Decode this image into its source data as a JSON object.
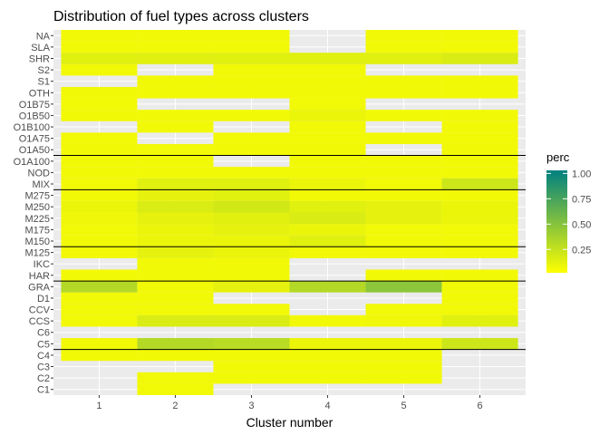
{
  "chart_data": {
    "type": "heatmap",
    "title": "Distribution of fuel types across clusters",
    "xlabel": "Cluster number",
    "ylabel": "",
    "x_categories": [
      "1",
      "2",
      "3",
      "4",
      "5",
      "6"
    ],
    "y_categories": [
      "C1",
      "C2",
      "C3",
      "C4",
      "C5",
      "C6",
      "CCS",
      "CCV",
      "D1",
      "GRA",
      "HAR",
      "IKC",
      "M125",
      "M150",
      "M175",
      "M225",
      "M250",
      "M275",
      "MIX",
      "NOD",
      "O1A100",
      "O1A50",
      "O1A75",
      "O1B100",
      "O1B50",
      "O1B75",
      "OTH",
      "S1",
      "S2",
      "SHR",
      "SLA",
      "NA"
    ],
    "rows": [
      {
        "y": "C1",
        "values": [
          null,
          0.05,
          null,
          null,
          null,
          null
        ]
      },
      {
        "y": "C2",
        "values": [
          null,
          0.05,
          0.05,
          0.05,
          0.05,
          null
        ]
      },
      {
        "y": "C3",
        "values": [
          null,
          null,
          0.05,
          0.05,
          0.05,
          null
        ]
      },
      {
        "y": "C4",
        "values": [
          0.05,
          0.05,
          0.05,
          0.05,
          0.05,
          null
        ]
      },
      {
        "y": "C5",
        "values": [
          0.05,
          0.3,
          0.28,
          0.08,
          0.08,
          0.2
        ]
      },
      {
        "y": "C6",
        "values": [
          null,
          null,
          null,
          null,
          null,
          null
        ]
      },
      {
        "y": "CCS",
        "values": [
          0.05,
          0.15,
          0.15,
          0.05,
          0.06,
          0.12
        ]
      },
      {
        "y": "CCV",
        "values": [
          0.05,
          0.05,
          0.05,
          null,
          0.05,
          0.05
        ]
      },
      {
        "y": "D1",
        "values": [
          0.05,
          0.05,
          null,
          null,
          null,
          0.05
        ]
      },
      {
        "y": "GRA",
        "values": [
          0.3,
          0.05,
          0.1,
          0.3,
          0.45,
          0.05
        ]
      },
      {
        "y": "HAR",
        "values": [
          0.05,
          0.05,
          0.05,
          null,
          0.05,
          0.05
        ]
      },
      {
        "y": "IKC",
        "values": [
          null,
          0.05,
          0.05,
          null,
          null,
          null
        ]
      },
      {
        "y": "M125",
        "values": [
          0.05,
          0.1,
          0.08,
          0.05,
          0.05,
          0.05
        ]
      },
      {
        "y": "M150",
        "values": [
          0.05,
          0.08,
          0.08,
          0.12,
          0.05,
          0.05
        ]
      },
      {
        "y": "M175",
        "values": [
          0.05,
          0.08,
          0.1,
          0.08,
          0.05,
          0.05
        ]
      },
      {
        "y": "M225",
        "values": [
          0.06,
          0.1,
          0.12,
          0.15,
          0.1,
          0.08
        ]
      },
      {
        "y": "M250",
        "values": [
          0.08,
          0.15,
          0.18,
          0.12,
          0.1,
          0.08
        ]
      },
      {
        "y": "M275",
        "values": [
          0.05,
          0.1,
          0.12,
          0.05,
          0.05,
          0.05
        ]
      },
      {
        "y": "MIX",
        "values": [
          0.05,
          0.12,
          0.12,
          0.08,
          0.05,
          0.2
        ]
      },
      {
        "y": "NOD",
        "values": [
          0.05,
          0.05,
          0.05,
          0.05,
          0.05,
          0.05
        ]
      },
      {
        "y": "O1A100",
        "values": [
          0.05,
          0.05,
          null,
          0.05,
          0.05,
          0.05
        ]
      },
      {
        "y": "O1A50",
        "values": [
          0.05,
          0.05,
          0.05,
          0.05,
          null,
          0.05
        ]
      },
      {
        "y": "O1A75",
        "values": [
          0.05,
          null,
          0.05,
          0.05,
          0.05,
          0.05
        ]
      },
      {
        "y": "O1B100",
        "values": [
          null,
          0.05,
          null,
          0.05,
          null,
          0.05
        ]
      },
      {
        "y": "O1B50",
        "values": [
          0.05,
          0.05,
          0.05,
          0.08,
          0.05,
          0.05
        ]
      },
      {
        "y": "O1B75",
        "values": [
          0.05,
          null,
          null,
          0.05,
          null,
          null
        ]
      },
      {
        "y": "OTH",
        "values": [
          0.05,
          0.05,
          0.05,
          0.05,
          0.05,
          0.05
        ]
      },
      {
        "y": "S1",
        "values": [
          null,
          0.05,
          0.05,
          0.05,
          0.05,
          0.05
        ]
      },
      {
        "y": "S2",
        "values": [
          0.05,
          null,
          0.05,
          0.05,
          null,
          null
        ]
      },
      {
        "y": "SHR",
        "values": [
          0.12,
          0.12,
          0.12,
          0.12,
          0.12,
          0.15
        ]
      },
      {
        "y": "SLA",
        "values": [
          0.05,
          0.05,
          0.05,
          null,
          0.05,
          0.05
        ]
      },
      {
        "y": "NA",
        "values": [
          0.05,
          0.05,
          0.05,
          null,
          0.05,
          0.05
        ]
      }
    ],
    "separator_lines_after": [
      "C4",
      "GRA",
      "M125",
      "M275",
      "O1A100"
    ],
    "legend": {
      "title": "perc",
      "placement": "right",
      "type": "continuous",
      "ticks": [
        0.25,
        0.5,
        0.75,
        1.0
      ],
      "tick_labels": [
        "0.25",
        "0.50",
        "0.75",
        "1.00"
      ],
      "range": [
        0,
        1.0
      ],
      "low_color": "#ffff00",
      "high_color": "#008080"
    },
    "panel_background": "#ebebeb",
    "grid_color": "#ffffff",
    "grid": true
  }
}
